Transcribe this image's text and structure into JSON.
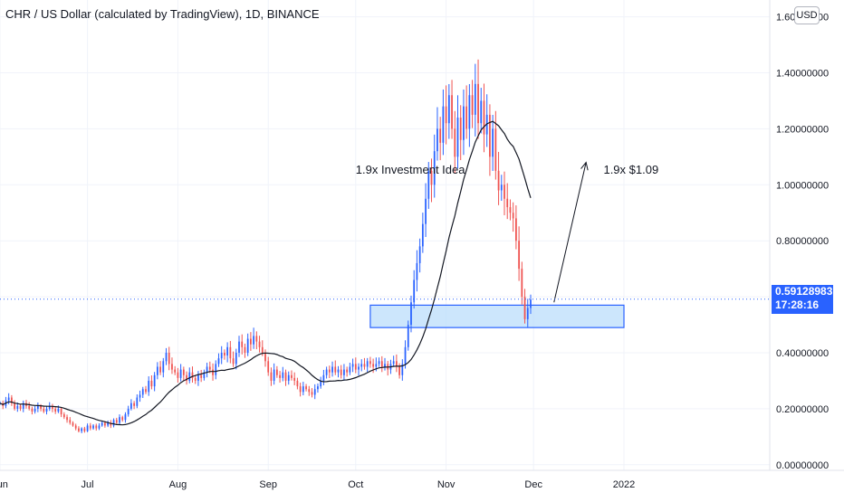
{
  "header": {
    "title": "CHR / US Dollar (calculated by TradingView), 1D, BINANCE",
    "currency": "USD"
  },
  "price_badge": {
    "price": "0.59128983",
    "countdown": "17:28:16"
  },
  "chart_data": {
    "type": "candlestick",
    "title": "CHR / US Dollar (calculated by TradingView), 1D, BINANCE",
    "y_tick_labels": [
      "0.00000000",
      "0.20000000",
      "0.40000000",
      "0.60000000",
      "0.80000000",
      "1.00000000",
      "1.20000000",
      "1.40000000",
      "1.60000000"
    ],
    "y_ticks": [
      0,
      0.2,
      0.4,
      0.6,
      0.8,
      1.0,
      1.2,
      1.4,
      1.6
    ],
    "ylim": [
      -0.02,
      1.66
    ],
    "x_tick_labels": [
      "Jun",
      "Jul",
      "Aug",
      "Sep",
      "Oct",
      "Nov",
      "Dec",
      "2022"
    ],
    "x_ticks": [
      "2021-06-01",
      "2021-07-01",
      "2021-08-01",
      "2021-09-01",
      "2021-10-01",
      "2021-11-01",
      "2021-12-01",
      "2022-01-01"
    ],
    "xlim": [
      "2021-06-01",
      "2022-02-20"
    ],
    "grid": true,
    "last_price": 0.59128983,
    "series": [
      {
        "kind": "candles",
        "start_date": "2021-06-01",
        "close": [
          0.22,
          0.21,
          0.23,
          0.24,
          0.22,
          0.2,
          0.21,
          0.2,
          0.22,
          0.21,
          0.2,
          0.19,
          0.2,
          0.21,
          0.2,
          0.19,
          0.2,
          0.21,
          0.2,
          0.19,
          0.2,
          0.18,
          0.17,
          0.16,
          0.15,
          0.14,
          0.13,
          0.12,
          0.13,
          0.12,
          0.14,
          0.13,
          0.14,
          0.13,
          0.14,
          0.15,
          0.14,
          0.15,
          0.14,
          0.16,
          0.15,
          0.17,
          0.16,
          0.18,
          0.2,
          0.22,
          0.21,
          0.24,
          0.25,
          0.27,
          0.26,
          0.3,
          0.28,
          0.32,
          0.35,
          0.33,
          0.37,
          0.4,
          0.36,
          0.34,
          0.33,
          0.31,
          0.34,
          0.32,
          0.3,
          0.33,
          0.31,
          0.3,
          0.32,
          0.31,
          0.33,
          0.35,
          0.34,
          0.32,
          0.36,
          0.38,
          0.4,
          0.39,
          0.42,
          0.38,
          0.36,
          0.4,
          0.44,
          0.42,
          0.4,
          0.45,
          0.43,
          0.46,
          0.44,
          0.42,
          0.4,
          0.37,
          0.33,
          0.3,
          0.34,
          0.32,
          0.31,
          0.33,
          0.3,
          0.32,
          0.31,
          0.3,
          0.28,
          0.26,
          0.28,
          0.27,
          0.26,
          0.25,
          0.27,
          0.28,
          0.3,
          0.32,
          0.34,
          0.33,
          0.35,
          0.33,
          0.34,
          0.32,
          0.34,
          0.33,
          0.35,
          0.36,
          0.34,
          0.35,
          0.36,
          0.35,
          0.37,
          0.36,
          0.35,
          0.36,
          0.37,
          0.35,
          0.36,
          0.34,
          0.36,
          0.37,
          0.35,
          0.32,
          0.36,
          0.42,
          0.5,
          0.58,
          0.66,
          0.72,
          0.78,
          0.86,
          0.95,
          1.05,
          1.0,
          1.12,
          1.2,
          1.15,
          1.28,
          1.22,
          1.32,
          1.2,
          1.1,
          1.24,
          1.16,
          1.28,
          1.2,
          1.32,
          1.25,
          1.36,
          1.22,
          1.3,
          1.18,
          1.25,
          1.1,
          1.2,
          1.05,
          0.98,
          1.0,
          0.95,
          0.92,
          0.9,
          0.88,
          0.8,
          0.7,
          0.6,
          0.52,
          0.56,
          0.59
        ],
        "note": "approximate daily closes read from the chart"
      },
      {
        "kind": "moving_average",
        "style": "line",
        "color": "#131722"
      }
    ],
    "annotations": [
      {
        "text": "1.9x Investment Idea",
        "date": "2021-10-01",
        "value": 1.04
      },
      {
        "text": "1.9x $1.09",
        "date": "2021-12-25",
        "value": 1.04
      },
      {
        "type": "arrow",
        "from": {
          "date": "2021-12-08",
          "value": 0.58
        },
        "to": {
          "date": "2021-12-19",
          "value": 1.08
        }
      },
      {
        "type": "zone",
        "from_date": "2021-10-06",
        "to_date": "2022-01-01",
        "low": 0.49,
        "high": 0.57
      }
    ],
    "colors": {
      "up": "#2962ff",
      "down": "#ef5350",
      "zone_fill": "#bbdefb",
      "zone_border": "#2962ff",
      "ma": "#131722",
      "axis_text": "#131722",
      "grid": "#f0f3fa"
    }
  }
}
